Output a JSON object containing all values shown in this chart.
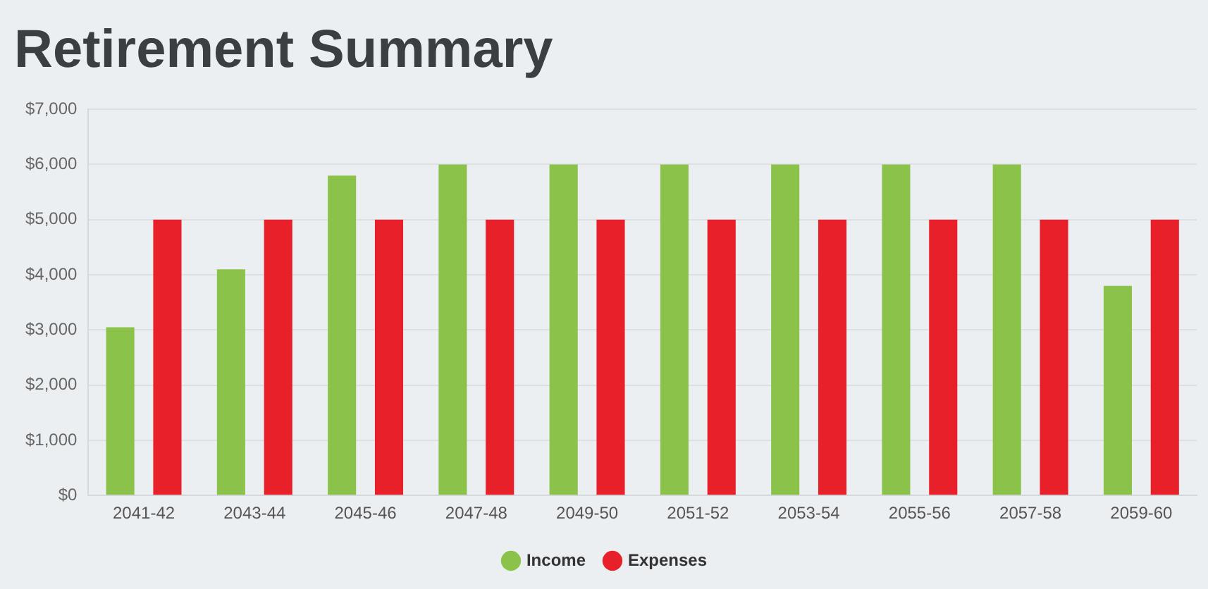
{
  "chart_data": {
    "type": "bar",
    "title": "Retirement Summary",
    "categories": [
      "2041-42",
      "2043-44",
      "2045-46",
      "2047-48",
      "2049-50",
      "2051-52",
      "2053-54",
      "2055-56",
      "2057-58",
      "2059-60"
    ],
    "series": [
      {
        "name": "Income",
        "color": "#8bc34a",
        "values": [
          3050,
          4100,
          5800,
          6000,
          6000,
          6000,
          6000,
          6000,
          6000,
          3800
        ]
      },
      {
        "name": "Expenses",
        "color": "#e8202a",
        "values": [
          5000,
          5000,
          5000,
          5000,
          5000,
          5000,
          5000,
          5000,
          5000,
          5000
        ]
      }
    ],
    "ylim": [
      0,
      7000
    ],
    "yticks": [
      {
        "value": 0,
        "label": "$0"
      },
      {
        "value": 1000,
        "label": "$1,000"
      },
      {
        "value": 2000,
        "label": "$2,000"
      },
      {
        "value": 3000,
        "label": "$3,000"
      },
      {
        "value": 4000,
        "label": "$4,000"
      },
      {
        "value": 5000,
        "label": "$5,000"
      },
      {
        "value": 6000,
        "label": "$6,000"
      },
      {
        "value": 7000,
        "label": "$7,000"
      }
    ],
    "grid": "y",
    "legend": "bottom",
    "marker": "circle"
  }
}
